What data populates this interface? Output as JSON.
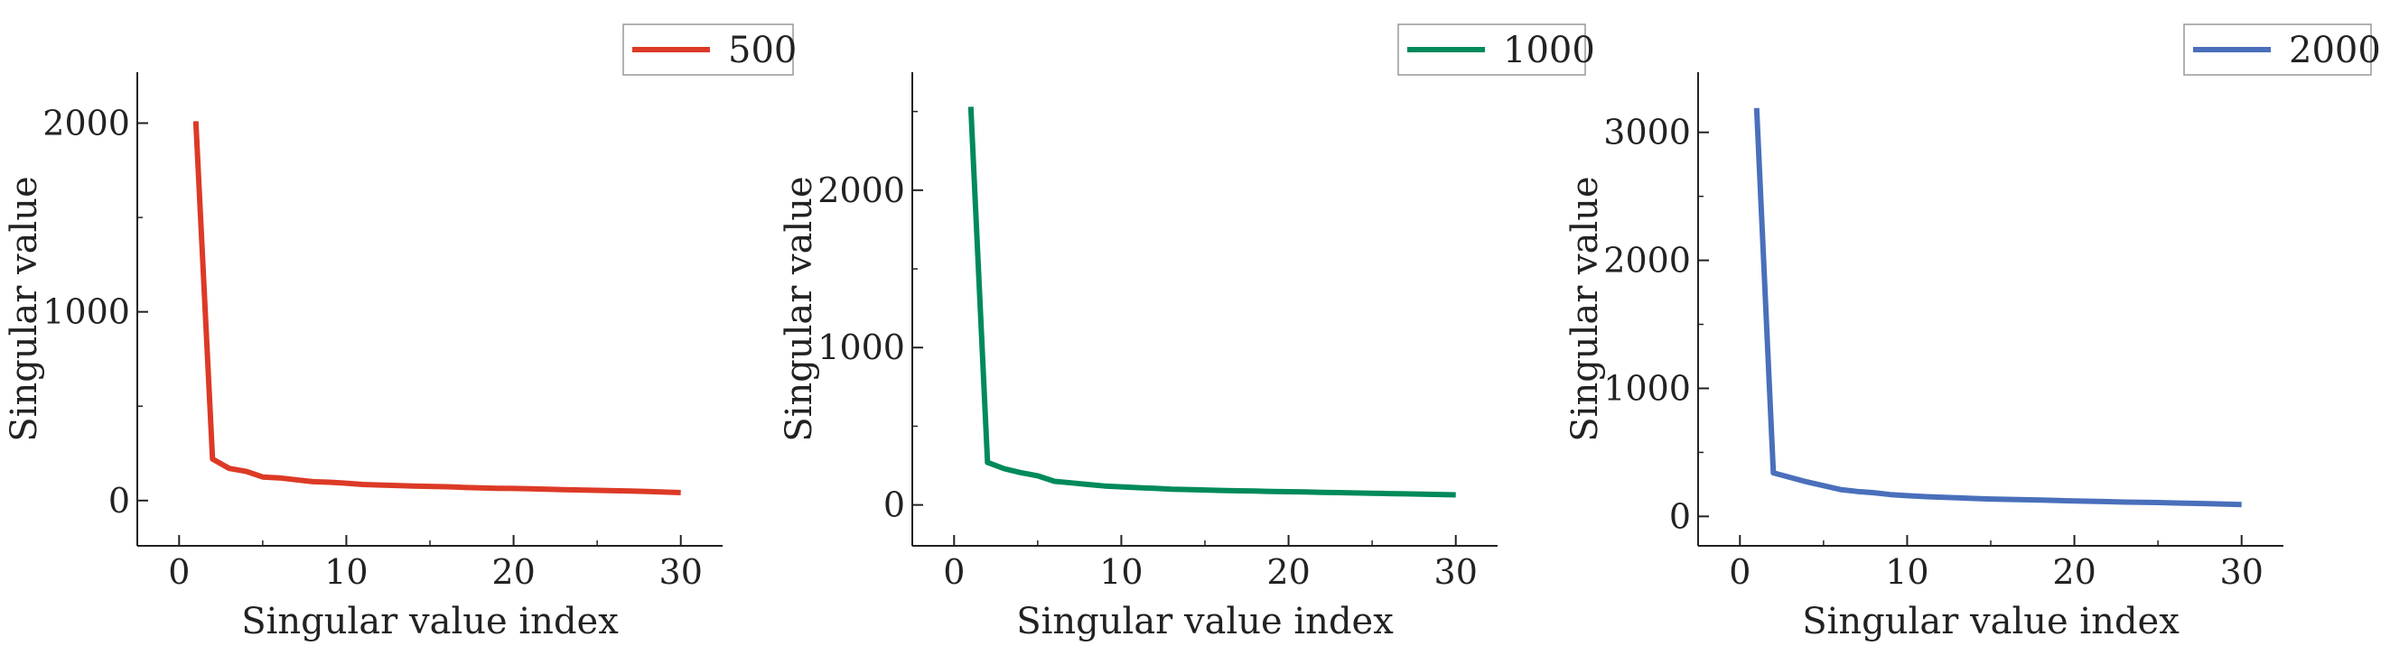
{
  "chart_data": [
    {
      "type": "line",
      "xlabel": "Singular value index",
      "ylabel": "Singular value",
      "xlim": [
        -2.5,
        32.5
      ],
      "ylim": [
        -240,
        2270
      ],
      "xticks": [
        0,
        10,
        20,
        30
      ],
      "yticks": [
        0,
        1000,
        2000
      ],
      "legend_position": "top-right",
      "grid": false,
      "series": [
        {
          "name": "500",
          "color": "#dc3a26",
          "x": [
            1,
            2,
            3,
            4,
            5,
            6,
            7,
            8,
            9,
            10,
            11,
            12,
            13,
            14,
            15,
            16,
            17,
            18,
            19,
            20,
            21,
            22,
            23,
            24,
            25,
            26,
            27,
            28,
            29,
            30
          ],
          "values": [
            2010,
            220,
            170,
            155,
            125,
            120,
            110,
            100,
            97,
            92,
            85,
            82,
            80,
            77,
            75,
            73,
            70,
            67,
            65,
            64,
            62,
            60,
            58,
            56,
            54,
            52,
            50,
            48,
            45,
            42
          ]
        }
      ]
    },
    {
      "type": "line",
      "xlabel": "Singular value index",
      "ylabel": "Singular value",
      "xlim": [
        -2.5,
        32.5
      ],
      "ylim": [
        -260,
        2750
      ],
      "xticks": [
        0,
        10,
        20,
        30
      ],
      "yticks": [
        0,
        1000,
        2000
      ],
      "legend_position": "top-right",
      "grid": false,
      "series": [
        {
          "name": "1000",
          "color": "#008a5a",
          "x": [
            1,
            2,
            3,
            4,
            5,
            6,
            7,
            8,
            9,
            10,
            11,
            12,
            13,
            14,
            15,
            16,
            17,
            18,
            19,
            20,
            21,
            22,
            23,
            24,
            25,
            26,
            27,
            28,
            29,
            30
          ],
          "values": [
            2530,
            270,
            230,
            205,
            185,
            150,
            140,
            130,
            120,
            115,
            110,
            105,
            100,
            98,
            95,
            92,
            90,
            88,
            86,
            84,
            82,
            80,
            78,
            76,
            74,
            72,
            70,
            68,
            66,
            64
          ]
        }
      ]
    },
    {
      "type": "line",
      "xlabel": "Singular value index",
      "ylabel": "Singular value",
      "xlim": [
        -2.5,
        32.5
      ],
      "ylim": [
        -230,
        3470
      ],
      "xticks": [
        0,
        10,
        20,
        30
      ],
      "yticks": [
        0,
        1000,
        2000,
        3000
      ],
      "legend_position": "top-right",
      "grid": false,
      "series": [
        {
          "name": "2000",
          "color": "#4a6fbb",
          "x": [
            1,
            2,
            3,
            4,
            5,
            6,
            7,
            8,
            9,
            10,
            11,
            12,
            13,
            14,
            15,
            16,
            17,
            18,
            19,
            20,
            21,
            22,
            23,
            24,
            25,
            26,
            27,
            28,
            29,
            30
          ],
          "values": [
            3190,
            340,
            305,
            270,
            240,
            210,
            195,
            185,
            170,
            162,
            155,
            150,
            145,
            140,
            136,
            133,
            130,
            127,
            124,
            121,
            118,
            115,
            112,
            110,
            108,
            105,
            102,
            99,
            96,
            93
          ]
        }
      ]
    }
  ]
}
